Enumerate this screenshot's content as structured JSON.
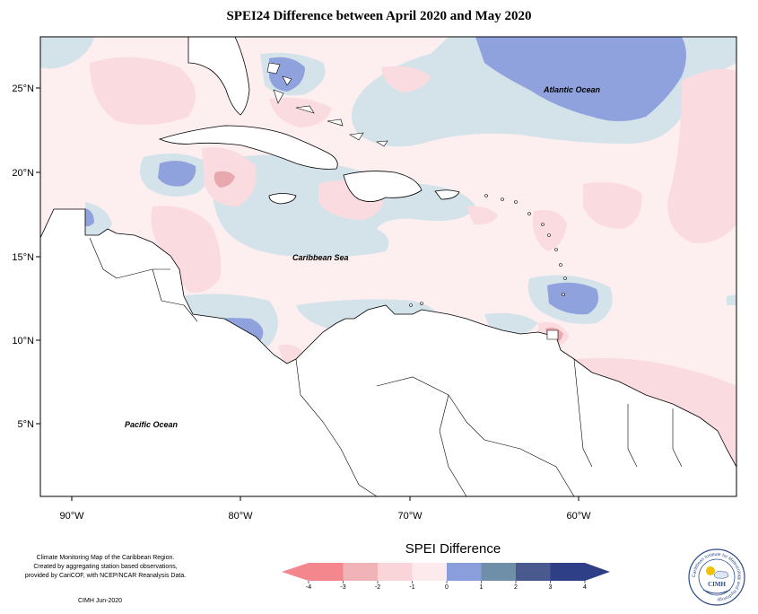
{
  "title": "SPEI24 Difference between April 2020 and May 2020",
  "map_labels": {
    "atlantic": "Atlantic Ocean",
    "caribbean": "Caribbean Sea",
    "pacific": "Pacific Ocean"
  },
  "axes": {
    "lat_ticks": [
      "25°N",
      "20°N",
      "15°N",
      "10°N",
      "5°N"
    ],
    "lon_ticks": [
      "90°W",
      "80°W",
      "70°W",
      "60°W"
    ]
  },
  "legend": {
    "title": "SPEI Difference",
    "ticks": [
      "-4",
      "-3",
      "-2",
      "-1",
      "0",
      "1",
      "2",
      "3",
      "4"
    ],
    "colors": [
      "#f4878e",
      "#f0b4b8",
      "#f9d4d9",
      "#fdeaec",
      "#d1e1e6",
      "#8a9edc",
      "#6f8fa8",
      "#4a5a8e",
      "#2f3f87"
    ]
  },
  "credit": {
    "line1": "Climate Monitoring Map of the Caribbean Region.",
    "line2": "Created by aggregating station based observations,",
    "line3": "provided by CariCOF, with NCEP/NCAR Reanalysis Data.",
    "date": "CIMH Jun-2020"
  },
  "logo": {
    "arc_text": "Caribbean Institute for Meteorology and Hydrology",
    "abbr": "CIMH"
  }
}
